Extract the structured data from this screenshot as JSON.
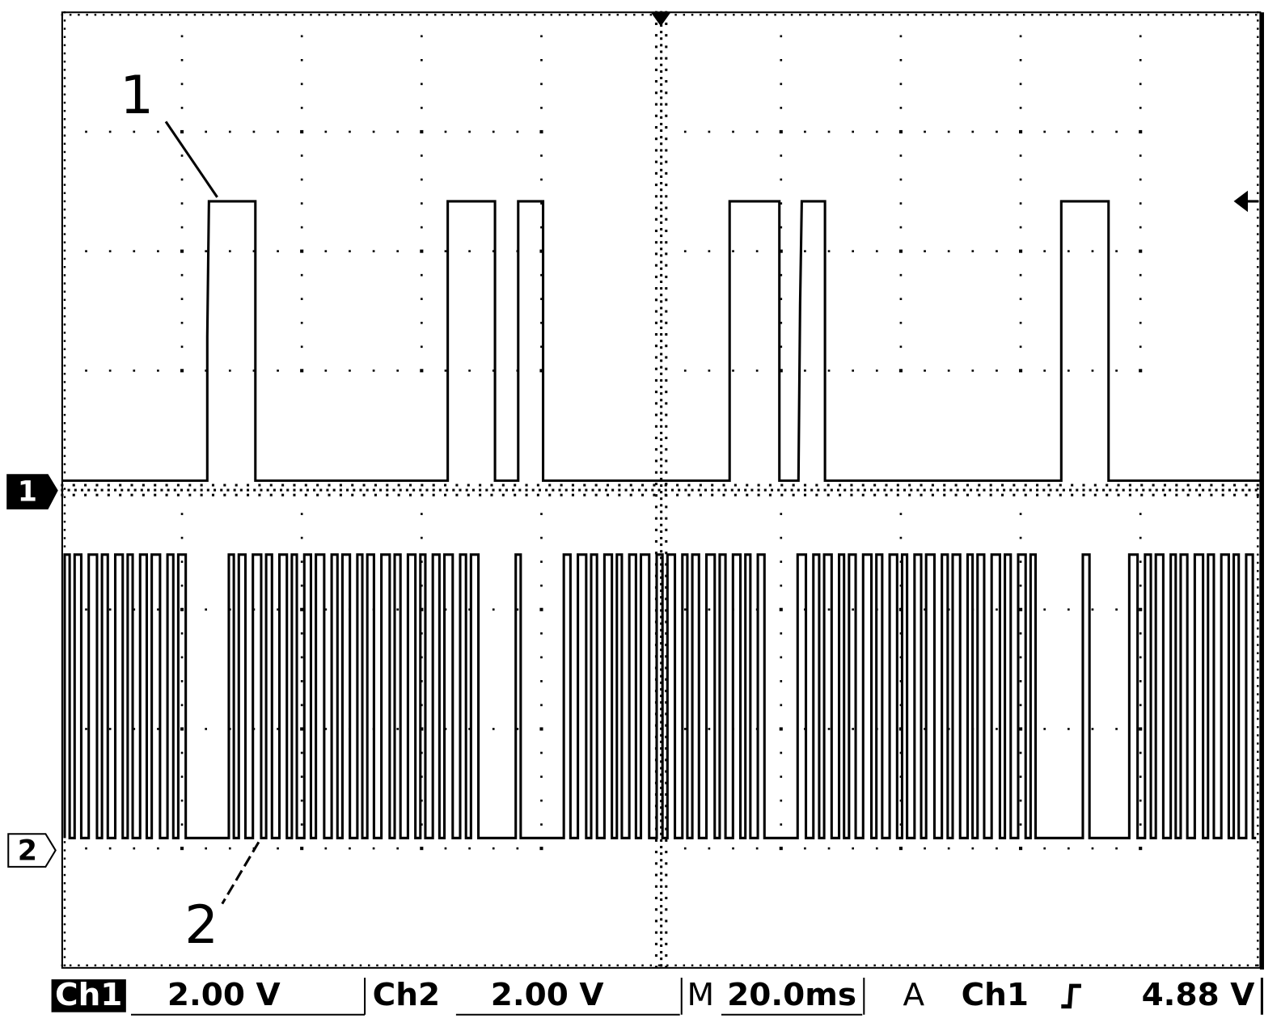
{
  "screen": {
    "annotations": [
      "1",
      "2"
    ],
    "channel_markers": [
      "1",
      "2"
    ],
    "status_bar": {
      "ch1_label": "Ch1",
      "ch1_scale": "2.00 V",
      "ch2_label": "Ch2",
      "ch2_scale": "2.00 V",
      "time_label": "M",
      "time_scale": "20.0ms",
      "trigger_label": "A",
      "trigger_source": "Ch1",
      "trigger_level": "4.88 V"
    }
  }
}
